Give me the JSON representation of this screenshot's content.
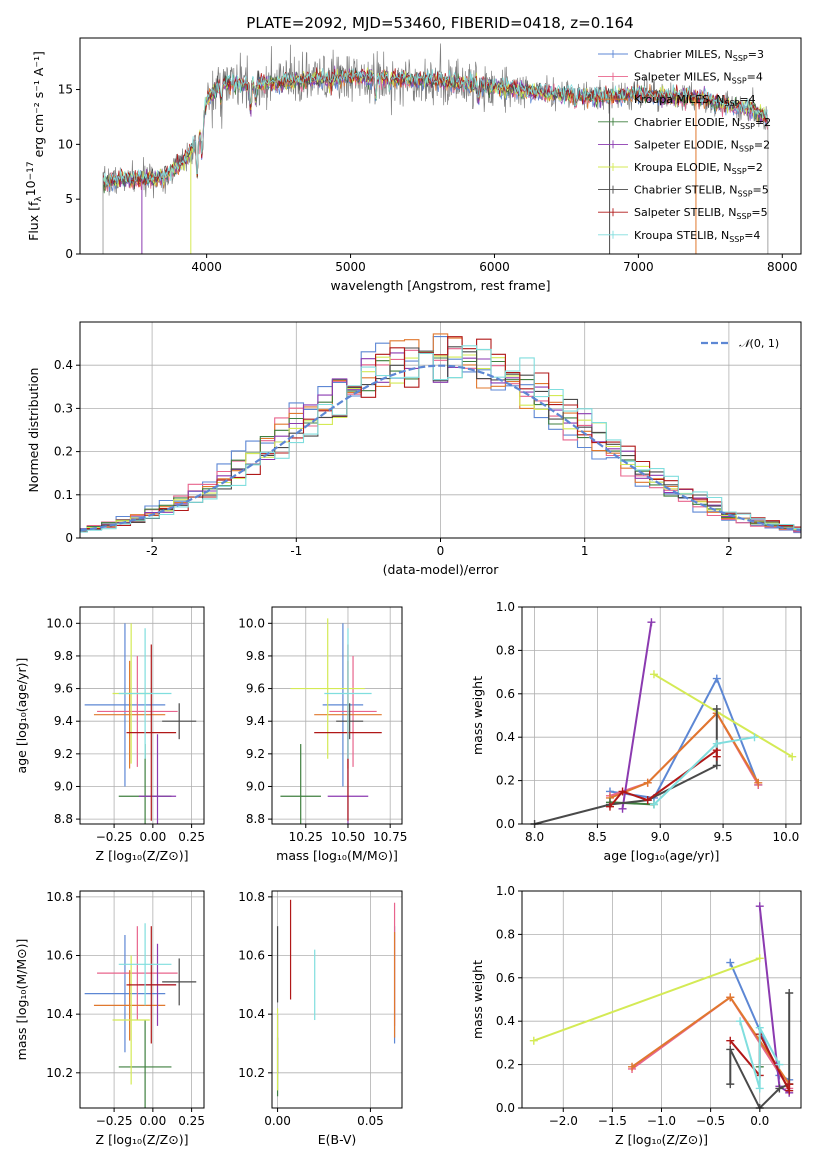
{
  "title": "PLATE=2092, MJD=53460, FIBERID=0418, z=0.164",
  "models": [
    {
      "name": "Chabrier MILES, N_SSP=3",
      "base": "Chabrier MILES, N",
      "sub": "SSP",
      "tail": "=3",
      "color": "#5d87d4"
    },
    {
      "name": "Salpeter MILES, N_SSP=4",
      "base": "Salpeter MILES, N",
      "sub": "SSP",
      "tail": "=4",
      "color": "#e8648c"
    },
    {
      "name": "Kroupa MILES, N_SSP=4",
      "base": "Kroupa MILES, N",
      "sub": "SSP",
      "tail": "=4",
      "color": "#e0782e"
    },
    {
      "name": "Chabrier ELODIE, N_SSP=2",
      "base": "Chabrier ELODIE, N",
      "sub": "SSP",
      "tail": "=2",
      "color": "#3f7f3f"
    },
    {
      "name": "Salpeter ELODIE, N_SSP=2",
      "base": "Salpeter ELODIE, N",
      "sub": "SSP",
      "tail": "=2",
      "color": "#8b3ab0"
    },
    {
      "name": "Kroupa ELODIE, N_SSP=2",
      "base": "Kroupa ELODIE, N",
      "sub": "SSP",
      "tail": "=2",
      "color": "#d4ea55"
    },
    {
      "name": "Chabrier STELIB, N_SSP=5",
      "base": "Chabrier STELIB, N",
      "sub": "SSP",
      "tail": "=5",
      "color": "#4a4a4a"
    },
    {
      "name": "Salpeter STELIB, N_SSP=5",
      "base": "Salpeter STELIB, N",
      "sub": "SSP",
      "tail": "=5",
      "color": "#b01818"
    },
    {
      "name": "Kroupa STELIB, N_SSP=4",
      "base": "Kroupa STELIB, N",
      "sub": "SSP",
      "tail": "=4",
      "color": "#80dede"
    }
  ],
  "chart_data": [
    {
      "type": "line",
      "id": "spectrum",
      "xlabel": "wavelength [Angstrom, rest frame]",
      "ylabel_base": "Flux [f",
      "ylabel_sub": "λ",
      "ylabel_rest": "10",
      "ylabel_exp": "−17",
      "ylabel_unit": " erg cm⁻² s⁻¹ A⁻¹]",
      "xlim": [
        3120,
        8130
      ],
      "ylim": [
        0,
        19.7
      ],
      "xticks": [
        4000,
        5000,
        6000,
        7000,
        8000
      ],
      "yticks": [
        0,
        5,
        10,
        15
      ],
      "data_color": "#7f7f7f",
      "continuum": {
        "wavelength": [
          3280,
          3400,
          3550,
          3700,
          3820,
          3900,
          3960,
          4000,
          4100,
          4300,
          4500,
          4700,
          4860,
          5000,
          5200,
          5400,
          5600,
          5800,
          6000,
          6200,
          6400,
          6600,
          6800,
          7000,
          7200,
          7400,
          7600,
          7800,
          7900
        ],
        "flux": [
          6.5,
          6.8,
          6.8,
          7.0,
          8.2,
          9.6,
          11.0,
          14.0,
          15.5,
          15.5,
          15.6,
          15.8,
          16.0,
          16.2,
          16.1,
          15.9,
          15.8,
          15.5,
          15.3,
          14.9,
          14.6,
          14.4,
          14.3,
          14.6,
          14.3,
          14.3,
          13.6,
          13.2,
          12.2
        ]
      },
      "absorption_lines": [
        {
          "wavelength": 3934,
          "depth": 3.5
        },
        {
          "wavelength": 3969,
          "depth": 2.5
        },
        {
          "wavelength": 4101,
          "depth": 1.5
        },
        {
          "wavelength": 4305,
          "depth": 2.5
        },
        {
          "wavelength": 4340,
          "depth": 1.2
        },
        {
          "wavelength": 4861,
          "depth": 1.0
        },
        {
          "wavelength": 5175,
          "depth": 1.8
        },
        {
          "wavelength": 5270,
          "depth": 1.0
        },
        {
          "wavelength": 5890,
          "depth": 1.5
        },
        {
          "wavelength": 6563,
          "depth": 1.0
        }
      ]
    },
    {
      "type": "histogram",
      "id": "residuals",
      "xlabel": "(data-model)/error",
      "ylabel": "Normed distribution",
      "legend": "N(0,1)",
      "legend_script": "𝒩",
      "legend_args": "(0, 1)",
      "xlim": [
        -2.5,
        2.5
      ],
      "ylim": [
        0,
        0.5
      ],
      "xticks": [
        -2,
        -1,
        0,
        1,
        2
      ],
      "yticks": [
        0.0,
        0.1,
        0.2,
        0.3,
        0.4
      ],
      "bin_width": 0.1,
      "reference": {
        "mean": 0,
        "sigma": 1
      }
    },
    {
      "type": "errorbar",
      "id": "age-vs-Z",
      "xlabel": "Z [log₁₀(Z/Z⊙)]",
      "ylabel": "age  [log₁₀(age/yr)]",
      "xlim": [
        -0.47,
        0.33
      ],
      "ylim": [
        8.77,
        10.1
      ],
      "xticks": [
        -0.25,
        0.0,
        0.25
      ],
      "xtick_labels": [
        "−0.25",
        "0.00",
        "0.25"
      ],
      "yticks": [
        8.8,
        9.0,
        9.2,
        9.4,
        9.6,
        9.8,
        10.0
      ],
      "ytick_labels": [
        "8.8",
        "9.0",
        "9.2",
        "9.4",
        "9.6",
        "9.8",
        "10.0"
      ],
      "points": [
        {
          "x": -0.18,
          "xerr": 0.26,
          "y": 9.5,
          "yerr": 0.5
        },
        {
          "x": -0.1,
          "xerr": 0.26,
          "y": 9.46,
          "yerr": 0.34
        },
        {
          "x": -0.15,
          "xerr": 0.23,
          "y": 9.44,
          "yerr": 0.33
        },
        {
          "x": -0.05,
          "xerr": 0.17,
          "y": 8.94,
          "yerr": 0.32
        },
        {
          "x": 0.03,
          "xerr": 0.12,
          "y": 8.94,
          "yerr": 0.38
        },
        {
          "x": -0.14,
          "xerr": 0.12,
          "y": 9.57,
          "yerr": 0.43
        },
        {
          "x": 0.17,
          "xerr": 0.11,
          "y": 9.4,
          "yerr": 0.11
        },
        {
          "x": -0.01,
          "xerr": 0.16,
          "y": 9.33,
          "yerr": 0.54
        },
        {
          "x": -0.05,
          "xerr": 0.17,
          "y": 9.57,
          "yerr": 0.4
        }
      ]
    },
    {
      "type": "errorbar",
      "id": "age-vs-mass",
      "xlabel": "mass [log₁₀(M/M⊙)]",
      "ylabel": "",
      "xlim": [
        10.05,
        10.82
      ],
      "ylim": [
        8.77,
        10.1
      ],
      "xticks": [
        10.25,
        10.5,
        10.75
      ],
      "xtick_labels": [
        "10.25",
        "10.50",
        "10.75"
      ],
      "yticks": [
        8.8,
        9.0,
        9.2,
        9.4,
        9.6,
        9.8,
        10.0
      ],
      "ytick_labels": [
        "8.8",
        "9.0",
        "9.2",
        "9.4",
        "9.6",
        "9.8",
        "10.0"
      ],
      "points": [
        {
          "x": 10.47,
          "xerr": 0.12,
          "y": 9.5,
          "yerr": 0.5
        },
        {
          "x": 10.53,
          "xerr": 0.14,
          "y": 9.46,
          "yerr": 0.34
        },
        {
          "x": 10.5,
          "xerr": 0.2,
          "y": 9.44,
          "yerr": 0.33
        },
        {
          "x": 10.22,
          "xerr": 0.12,
          "y": 8.94,
          "yerr": 0.32
        },
        {
          "x": 10.5,
          "xerr": 0.12,
          "y": 8.94,
          "yerr": 0.38
        },
        {
          "x": 10.38,
          "xerr": 0.22,
          "y": 9.6,
          "yerr": 0.43
        },
        {
          "x": 10.51,
          "xerr": 0.08,
          "y": 9.4,
          "yerr": 0.11
        },
        {
          "x": 10.5,
          "xerr": 0.2,
          "y": 9.33,
          "yerr": 0.54
        },
        {
          "x": 10.5,
          "xerr": 0.14,
          "y": 9.57,
          "yerr": 0.4
        }
      ]
    },
    {
      "type": "line",
      "id": "weight-vs-age",
      "xlabel": "age  [log₁₀(age/yr)]",
      "ylabel": "mass weight",
      "xlim": [
        7.9,
        10.12
      ],
      "ylim": [
        0,
        1
      ],
      "xticks": [
        8.0,
        8.5,
        9.0,
        9.5,
        10.0
      ],
      "xtick_labels": [
        "8.0",
        "8.5",
        "9.0",
        "9.5",
        "10.0"
      ],
      "yticks": [
        0.0,
        0.2,
        0.4,
        0.6,
        0.8,
        1.0
      ],
      "ytick_labels": [
        "0.0",
        "0.2",
        "0.4",
        "0.6",
        "0.8",
        "1.0"
      ],
      "series": [
        {
          "x": [
            8.6,
            8.95,
            9.45,
            9.78
          ],
          "y": [
            0.15,
            0.12,
            0.67,
            0.18
          ]
        },
        {
          "x": [
            8.6,
            8.9,
            9.45,
            9.78
          ],
          "y": [
            0.13,
            0.19,
            0.51,
            0.18
          ]
        },
        {
          "x": [
            8.6,
            8.9,
            9.45,
            9.78
          ],
          "y": [
            0.12,
            0.19,
            0.51,
            0.19
          ]
        },
        {
          "x": [
            8.6,
            8.95
          ],
          "y": [
            0.1,
            0.09
          ]
        },
        {
          "x": [
            8.7,
            8.93
          ],
          "y": [
            0.07,
            0.93
          ]
        },
        {
          "x": [
            8.95,
            10.05
          ],
          "y": [
            0.69,
            0.31
          ]
        },
        {
          "x": [
            8.0,
            8.6,
            8.9,
            9.45,
            9.45
          ],
          "y": [
            0.0,
            0.09,
            0.11,
            0.27,
            0.53
          ]
        },
        {
          "x": [
            8.6,
            8.7,
            8.9,
            9.45,
            9.45
          ],
          "y": [
            0.08,
            0.15,
            0.11,
            0.34,
            0.31
          ]
        },
        {
          "x": [
            8.95,
            9.45,
            9.75
          ],
          "y": [
            0.09,
            0.37,
            0.4
          ]
        }
      ]
    },
    {
      "type": "errorbar",
      "id": "mass-vs-Z",
      "xlabel": "Z [log₁₀(Z/Z⊙)]",
      "ylabel": "mass [log₁₀(M/M⊙)]",
      "xlim": [
        -0.47,
        0.33
      ],
      "ylim": [
        10.08,
        10.82
      ],
      "xticks": [
        -0.25,
        0.0,
        0.25
      ],
      "xtick_labels": [
        "−0.25",
        "0.00",
        "0.25"
      ],
      "yticks": [
        10.2,
        10.4,
        10.6,
        10.8
      ],
      "ytick_labels": [
        "10.2",
        "10.4",
        "10.6",
        "10.8"
      ],
      "points": [
        {
          "x": -0.18,
          "xerr": 0.26,
          "y": 10.47,
          "yerr": 0.2
        },
        {
          "x": -0.1,
          "xerr": 0.26,
          "y": 10.54,
          "yerr": 0.16
        },
        {
          "x": -0.15,
          "xerr": 0.23,
          "y": 10.43,
          "yerr": 0.12
        },
        {
          "x": -0.05,
          "xerr": 0.17,
          "y": 10.22,
          "yerr": 0.16
        },
        {
          "x": 0.03,
          "xerr": 0.12,
          "y": 10.5,
          "yerr": 0.14
        },
        {
          "x": -0.14,
          "xerr": 0.12,
          "y": 10.38,
          "yerr": 0.22
        },
        {
          "x": 0.17,
          "xerr": 0.11,
          "y": 10.51,
          "yerr": 0.08
        },
        {
          "x": -0.01,
          "xerr": 0.16,
          "y": 10.5,
          "yerr": 0.2
        },
        {
          "x": -0.05,
          "xerr": 0.17,
          "y": 10.57,
          "yerr": 0.14
        }
      ]
    },
    {
      "type": "errorbar",
      "id": "mass-vs-EBV",
      "xlabel": "E(B-V)",
      "ylabel": "",
      "xlim": [
        -0.003,
        0.067
      ],
      "ylim": [
        10.08,
        10.82
      ],
      "xticks": [
        0.0,
        0.05
      ],
      "xtick_labels": [
        "0.00",
        "0.05"
      ],
      "yticks": [
        10.2,
        10.4,
        10.6,
        10.8
      ],
      "ytick_labels": [
        "10.2",
        "10.4",
        "10.6",
        "10.8"
      ],
      "points": [
        {
          "x": 0.063,
          "xerr": 0,
          "y": 10.5,
          "yerr": 0.2
        },
        {
          "x": 0.063,
          "xerr": 0,
          "y": 10.57,
          "yerr": 0.21
        },
        {
          "x": 0.063,
          "xerr": 0,
          "y": 10.5,
          "yerr": 0.18
        },
        {
          "x": 0.0,
          "xerr": 0,
          "y": 10.22,
          "yerr": 0.1
        },
        {
          "x": 0.0,
          "xerr": 0,
          "y": 10.3,
          "yerr": 0.1
        },
        {
          "x": 0.0,
          "xerr": 0,
          "y": 10.28,
          "yerr": 0.14
        },
        {
          "x": 0.0,
          "xerr": 0,
          "y": 10.57,
          "yerr": 0.13
        },
        {
          "x": 0.007,
          "xerr": 0,
          "y": 10.62,
          "yerr": 0.17
        },
        {
          "x": 0.02,
          "xerr": 0,
          "y": 10.5,
          "yerr": 0.12
        }
      ]
    },
    {
      "type": "line",
      "id": "weight-vs-Z",
      "xlabel": "Z [log₁₀(Z/Z⊙)]",
      "ylabel": "mass weight",
      "xlim": [
        -2.42,
        0.42
      ],
      "ylim": [
        0,
        1
      ],
      "xticks": [
        -2.0,
        -1.5,
        -1.0,
        -0.5,
        0.0
      ],
      "xtick_labels": [
        "−2.0",
        "−1.5",
        "−1.0",
        "−0.5",
        "0.0"
      ],
      "yticks": [
        0.0,
        0.2,
        0.4,
        0.6,
        0.8,
        1.0
      ],
      "ytick_labels": [
        "0.0",
        "0.2",
        "0.4",
        "0.6",
        "0.8",
        "1.0"
      ],
      "series": [
        {
          "x": [
            -0.3,
            0.2,
            0.3
          ],
          "y": [
            0.67,
            0.15,
            0.13
          ]
        },
        {
          "x": [
            -1.3,
            -0.3,
            0.3
          ],
          "y": [
            0.18,
            0.51,
            0.09
          ]
        },
        {
          "x": [
            -1.3,
            -0.3,
            0.3
          ],
          "y": [
            0.19,
            0.51,
            0.11
          ]
        },
        {
          "x": [
            0.0
          ],
          "y": [
            0.19
          ]
        },
        {
          "x": [
            0.0,
            0.2,
            0.3
          ],
          "y": [
            0.93,
            0.1,
            0.07
          ]
        },
        {
          "x": [
            -2.3,
            0.0
          ],
          "y": [
            0.31,
            0.69
          ]
        },
        {
          "x": [
            -0.3,
            -0.3,
            0.0,
            0.2,
            0.3,
            0.3
          ],
          "y": [
            0.11,
            0.27,
            0.0,
            0.09,
            0.11,
            0.53
          ]
        },
        {
          "x": [
            -0.3,
            0.0,
            0.0,
            0.3,
            0.3
          ],
          "y": [
            0.31,
            0.15,
            0.34,
            0.08,
            0.11
          ]
        },
        {
          "x": [
            -0.2,
            0.0,
            0.0,
            0.2
          ],
          "y": [
            0.4,
            0.09,
            0.37,
            0.2
          ]
        }
      ]
    }
  ]
}
